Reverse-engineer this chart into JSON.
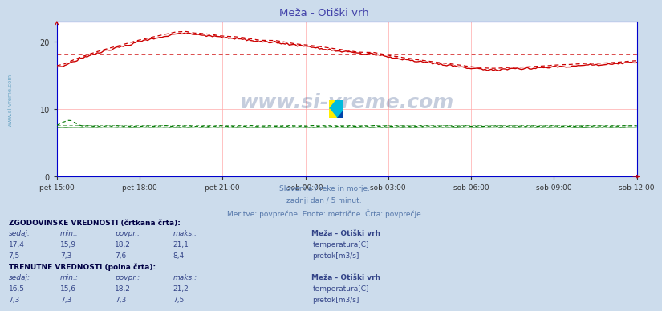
{
  "title": "Meža - Otiški vrh",
  "title_color": "#4444aa",
  "background_color": "#ccdcec",
  "plot_bg_color": "#ffffff",
  "grid_color_v": "#ffcccc",
  "grid_color_h": "#ffcccc",
  "x_labels": [
    "pet 15:00",
    "pet 18:00",
    "pet 21:00",
    "sob 00:00",
    "sob 03:00",
    "sob 06:00",
    "sob 09:00",
    "sob 12:00"
  ],
  "y_ticks": [
    0,
    10,
    20
  ],
  "ylim_min": 0,
  "ylim_max": 23,
  "subtitle_lines": [
    "Slovenija / reke in morje.",
    "zadnji dan / 5 minut.",
    "Meritve: povprečne  Enote: metrične  Črta: povprečje"
  ],
  "subtitle_color": "#5577aa",
  "watermark_text": "www.si-vreme.com",
  "watermark_color": "#1a3a7a",
  "watermark_alpha": 0.25,
  "sidebar_text": "www.si-vreme.com",
  "sidebar_color": "#5599bb",
  "section1_title": "ZGODOVINSKE VREDNOSTI (črtkana črta):",
  "section2_title": "TRENUTNE VREDNOSTI (polna črta):",
  "table_headers": [
    "sedaj:",
    "min.:",
    "povpr.:",
    "maks.:"
  ],
  "station_name": "Meža - Otiški vrh",
  "hist_temp": {
    "sedaj": "17,4",
    "min": "15,9",
    "povpr": "18,2",
    "maks": "21,1"
  },
  "hist_flow": {
    "sedaj": "7,5",
    "min": "7,3",
    "povpr": "7,6",
    "maks": "8,4"
  },
  "curr_temp": {
    "sedaj": "16,5",
    "min": "15,6",
    "povpr": "18,2",
    "maks": "21,2"
  },
  "curr_flow": {
    "sedaj": "7,3",
    "min": "7,3",
    "povpr": "7,3",
    "maks": "7,5"
  },
  "temp_color": "#cc0000",
  "flow_color": "#007700",
  "avg_temp_hist": 18.2,
  "avg_temp_curr": 18.2,
  "avg_flow_hist": 7.6,
  "avg_flow_curr": 7.3,
  "n_points": 288,
  "axis_color": "#0000cc",
  "tick_color": "#333333"
}
